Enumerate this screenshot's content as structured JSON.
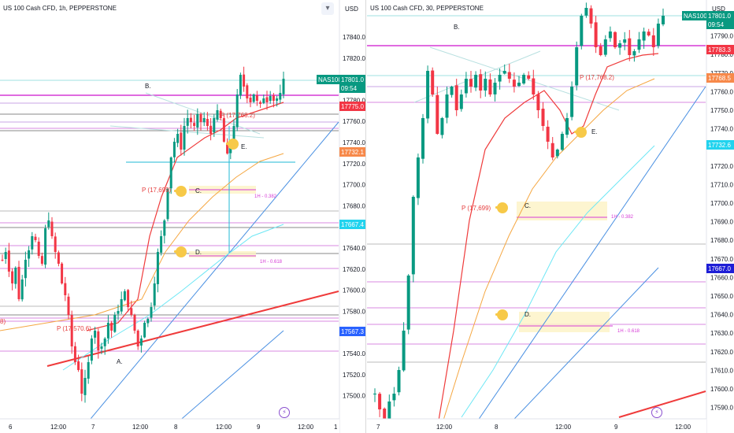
{
  "panels": [
    {
      "id": "left",
      "title": "US 100 Cash CFD, 1h, PEPPERSTONE",
      "currency": "USD",
      "y_labels": [
        "17840.0",
        "17820.0",
        "17800.0",
        "17780.0",
        "17760.0",
        "17740.0",
        "17720.0",
        "17700.0",
        "17680.0",
        "17660.0",
        "17640.0",
        "17620.0",
        "17600.0",
        "17580.0",
        "17560.0",
        "17540.0",
        "17520.0",
        "17500.0"
      ],
      "x_labels": [
        "6",
        "12:00",
        "7",
        "12:00",
        "8",
        "12:00",
        "9",
        "12:00",
        "1"
      ],
      "price_tags": [
        {
          "text": "NAS100",
          "color": "#089981",
          "kind": "symbol"
        },
        {
          "text": "17801.0",
          "color": "#089981",
          "kind": "last"
        },
        {
          "text": "09:54",
          "color": "#089981",
          "kind": "timer"
        },
        {
          "text": "17775.0",
          "color": "#f23645",
          "kind": "level"
        },
        {
          "text": "17732.1",
          "color": "#f7894a",
          "kind": "level"
        },
        {
          "text": "17667.4",
          "color": "#22d3ee",
          "kind": "level"
        },
        {
          "text": "17567.3",
          "color": "#2962ff",
          "kind": "level"
        }
      ],
      "annotations": [
        "B.",
        "A.",
        "C.",
        "D.",
        "E.",
        "P (17,699)",
        "P (17,570.6)",
        "P (17,768.2)",
        "1H - 0.382",
        "1H - 0.618",
        "8)"
      ],
      "bolt": "⚡"
    },
    {
      "id": "right",
      "title": "US 100 Cash CFD, 30, PEPPERSTONE",
      "currency": "USD",
      "y_labels": [
        "17800.0",
        "17790.0",
        "17780.0",
        "17770.0",
        "17760.0",
        "17750.0",
        "17740.0",
        "17730.0",
        "17720.0",
        "17710.0",
        "17700.0",
        "17690.0",
        "17680.0",
        "17670.0",
        "17660.0",
        "17650.0",
        "17640.0",
        "17630.0",
        "17620.0",
        "17610.0",
        "17600.0",
        "17590.0"
      ],
      "x_labels": [
        "7",
        "12:00",
        "8",
        "12:00",
        "9",
        "12:00"
      ],
      "price_tags": [
        {
          "text": "NAS100",
          "color": "#089981",
          "kind": "symbol"
        },
        {
          "text": "17801.0",
          "color": "#089981",
          "kind": "last"
        },
        {
          "text": "09:54",
          "color": "#089981",
          "kind": "timer"
        },
        {
          "text": "17783.3",
          "color": "#f23645",
          "kind": "level"
        },
        {
          "text": "17768.5",
          "color": "#f7894a",
          "kind": "level"
        },
        {
          "text": "17732.6",
          "color": "#22d3ee",
          "kind": "level"
        },
        {
          "text": "17667.0",
          "color": "#1e1ed6",
          "kind": "level"
        }
      ],
      "annotations": [
        "B.",
        "C.",
        "D.",
        "E.",
        "P (17,699)",
        "P (17,768.2)",
        "1H - 0.382",
        "1H - 0.618"
      ],
      "bolt": "⚡"
    }
  ],
  "chart_data": [
    {
      "type": "candlestick",
      "title": "US 100 Cash CFD, 1h, PEPPERSTONE",
      "ylim": [
        17490,
        17855
      ],
      "ylabel": "USD",
      "x": [
        "6",
        "12:00",
        "7",
        "12:00",
        "8",
        "12:00",
        "9",
        "12:00",
        "1"
      ],
      "last_price": 17801.0,
      "levels": [
        17775.0,
        17732.1,
        17667.4,
        17567.3
      ]
    },
    {
      "type": "candlestick",
      "title": "US 100 Cash CFD, 30, PEPPERSTONE",
      "ylim": [
        17585,
        17807
      ],
      "ylabel": "USD",
      "x": [
        "7",
        "12:00",
        "8",
        "12:00",
        "9",
        "12:00"
      ],
      "last_price": 17801.0,
      "levels": [
        17783.3,
        17768.5,
        17732.6,
        17667.0
      ]
    }
  ],
  "colors": {
    "up": "#089981",
    "down": "#f23645",
    "magenta": "#d63ad6",
    "fib_zone": "#fdf3c4",
    "blue_channel": "#4a90e2",
    "cyan_ma": "#4dd9f0",
    "orange_ma": "#f5a742",
    "red_ma": "#ef3b3b"
  }
}
